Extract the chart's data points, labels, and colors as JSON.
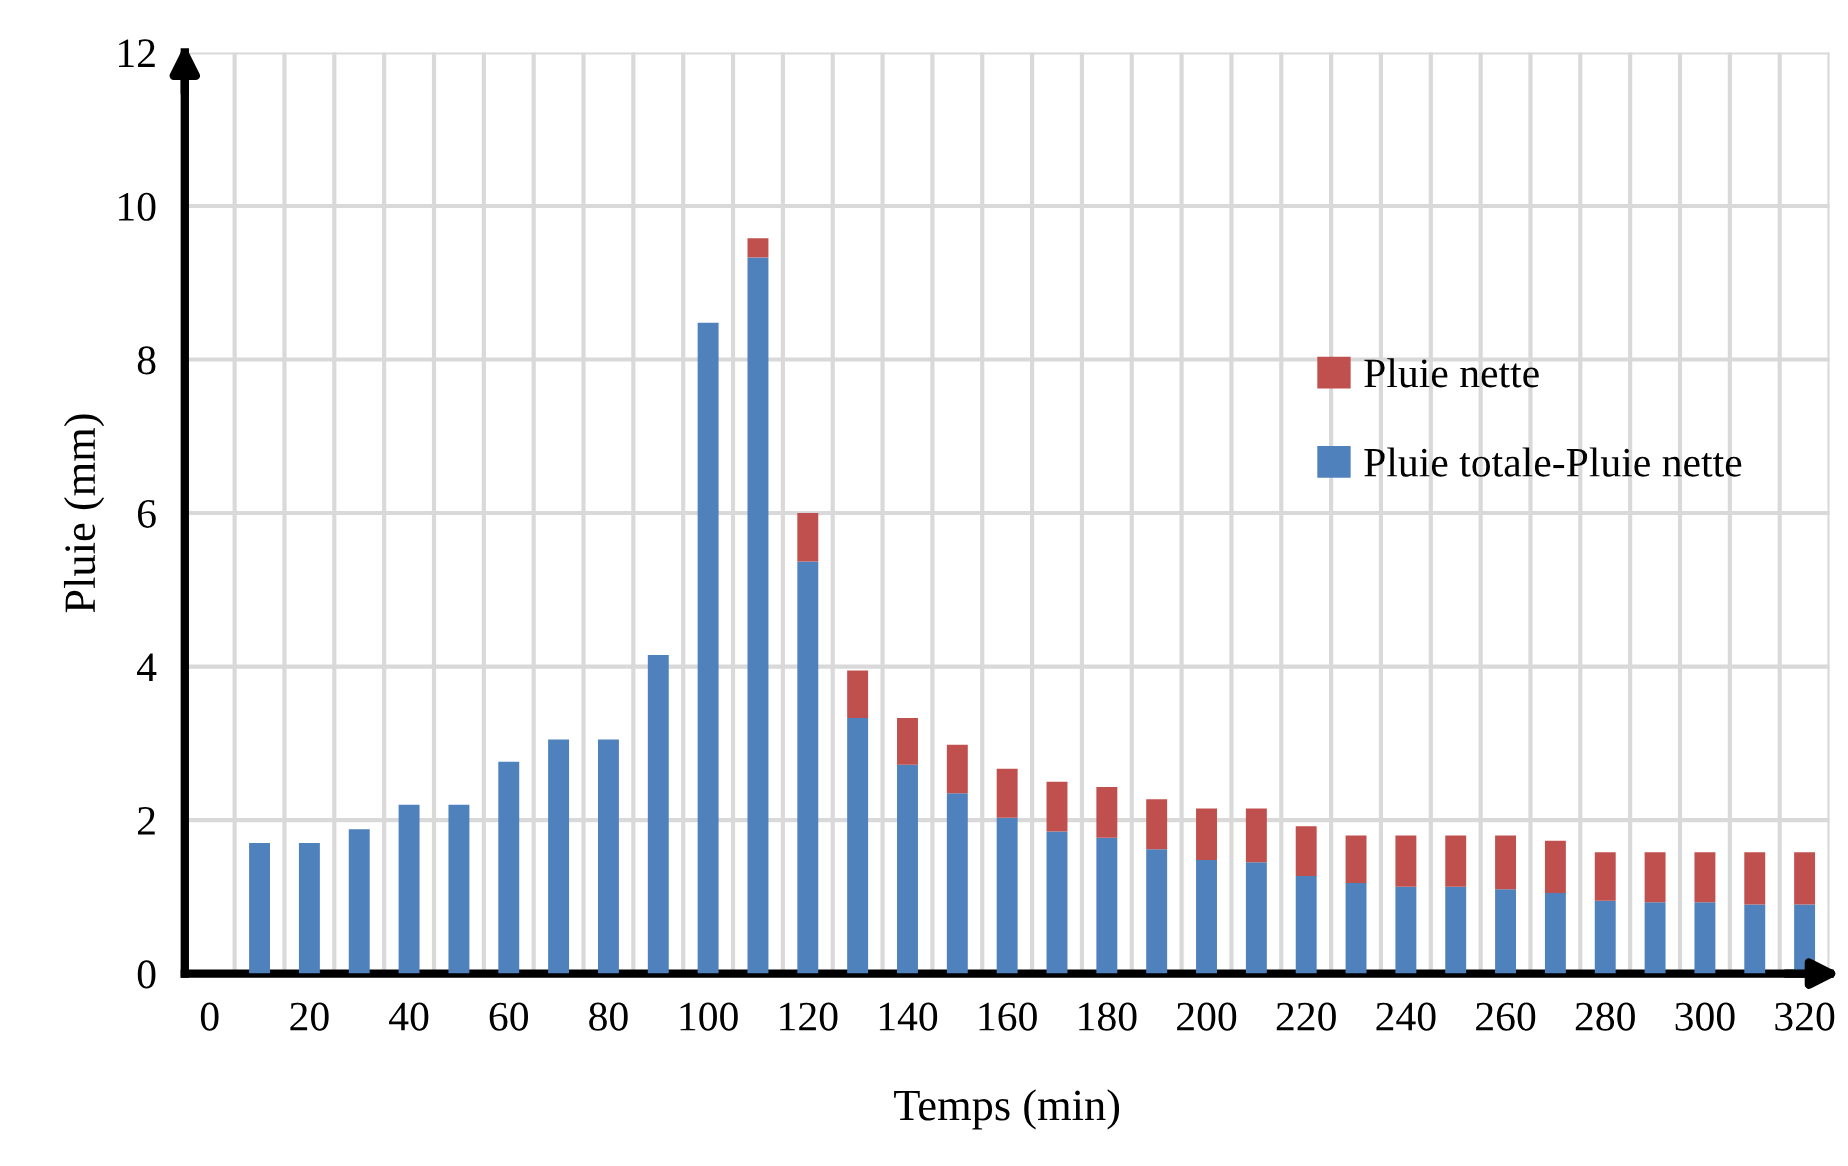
{
  "chart_data": {
    "type": "bar",
    "stacked": true,
    "xlabel": "Temps (min)",
    "ylabel": "Pluie (mm)",
    "x": [
      10,
      20,
      30,
      40,
      50,
      60,
      70,
      80,
      90,
      100,
      110,
      120,
      130,
      140,
      150,
      160,
      170,
      180,
      190,
      200,
      210,
      220,
      230,
      240,
      250,
      260,
      270,
      280,
      290,
      300,
      310,
      320
    ],
    "series": [
      {
        "name": "Pluie totale-Pluie nette",
        "color": "#4f81bd",
        "values": [
          1.7,
          1.7,
          1.88,
          2.2,
          2.2,
          2.76,
          3.05,
          3.05,
          4.15,
          8.48,
          9.33,
          5.37,
          3.33,
          2.72,
          2.35,
          2.03,
          1.85,
          1.77,
          1.62,
          1.48,
          1.45,
          1.27,
          1.18,
          1.13,
          1.13,
          1.1,
          1.05,
          0.95,
          0.93,
          0.93,
          0.9,
          0.9
        ]
      },
      {
        "name": "Pluie nette",
        "color": "#c0504d",
        "values": [
          0,
          0,
          0,
          0,
          0,
          0,
          0,
          0,
          0,
          0,
          0.25,
          0.63,
          0.62,
          0.61,
          0.63,
          0.64,
          0.65,
          0.66,
          0.65,
          0.67,
          0.7,
          0.65,
          0.62,
          0.67,
          0.67,
          0.7,
          0.68,
          0.63,
          0.65,
          0.65,
          0.68,
          0.68
        ]
      }
    ],
    "xlim": [
      -5,
      325
    ],
    "ylim": [
      0,
      12
    ],
    "xticks": [
      0,
      20,
      40,
      60,
      80,
      100,
      120,
      140,
      160,
      180,
      200,
      220,
      240,
      260,
      280,
      300,
      320
    ],
    "yticks": [
      0,
      2,
      4,
      6,
      8,
      10,
      12
    ],
    "grid": true,
    "legend": "right"
  }
}
